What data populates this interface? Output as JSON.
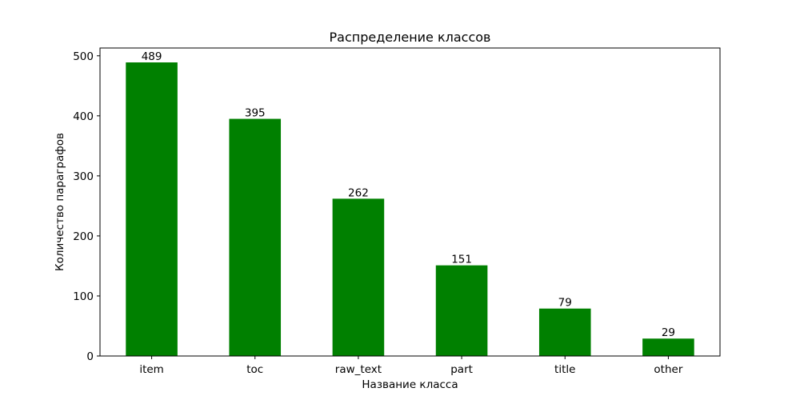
{
  "chart_data": {
    "type": "bar",
    "title": "Распределение классов",
    "xlabel": "Название класса",
    "ylabel": "Количество параграфов",
    "categories": [
      "item",
      "toc",
      "raw_text",
      "part",
      "title",
      "other"
    ],
    "values": [
      489,
      395,
      262,
      151,
      79,
      29
    ],
    "data_labels": [
      "489",
      "395",
      "262",
      "151",
      "79",
      "29"
    ],
    "yticks": [
      0,
      100,
      200,
      300,
      400,
      500
    ],
    "ylim": [
      0,
      513
    ],
    "grid": false,
    "legend": "none",
    "bar_color": "#008000"
  }
}
